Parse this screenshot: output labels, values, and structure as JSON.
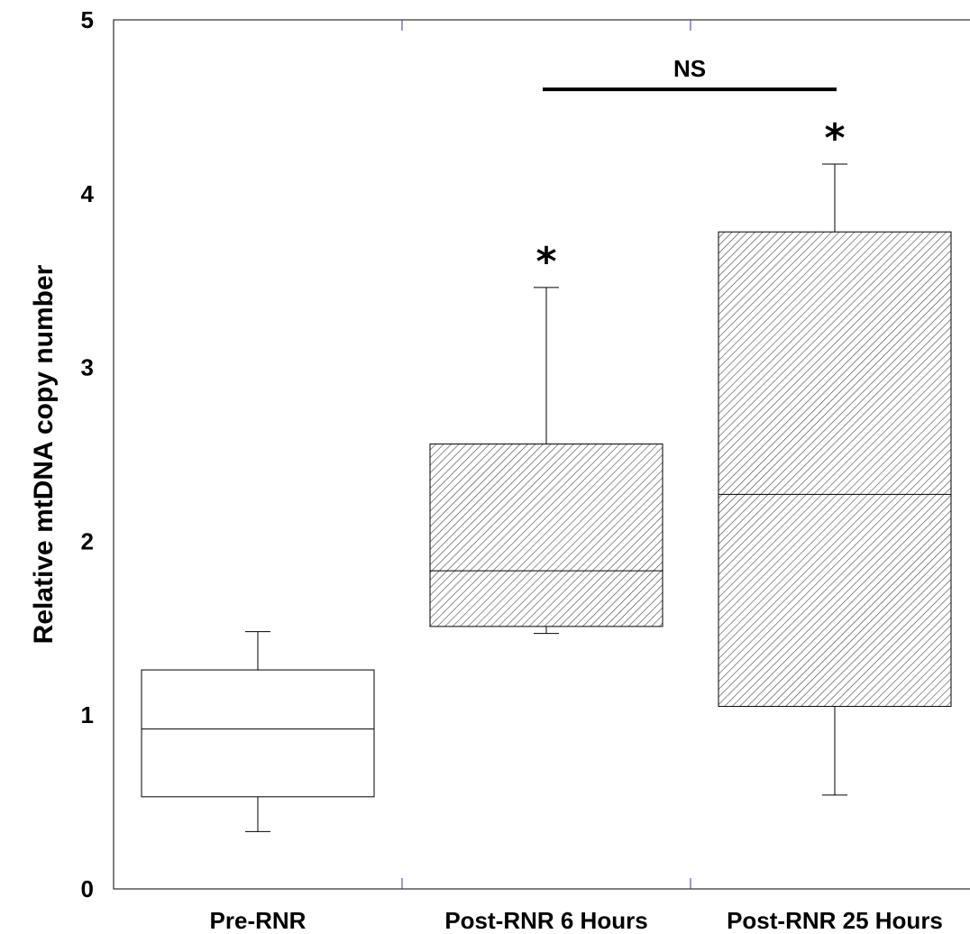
{
  "chart_data": {
    "type": "box",
    "ylabel": "Relative mtDNA copy number",
    "ylim": [
      0,
      5
    ],
    "yticks": [
      "0",
      "1",
      "2",
      "3",
      "4",
      "5"
    ],
    "categories": [
      "Pre-RNR",
      "Post-RNR 6 Hours",
      "Post-RNR 25 Hours"
    ],
    "boxes": [
      {
        "category": "Pre-RNR",
        "whisker_low": 0.33,
        "q1": 0.53,
        "median": 0.92,
        "q3": 1.26,
        "whisker_high": 1.48,
        "fill": "none",
        "marker": ""
      },
      {
        "category": "Post-RNR 6 Hours",
        "whisker_low": 1.47,
        "q1": 1.51,
        "median": 1.83,
        "q3": 2.56,
        "whisker_high": 3.46,
        "fill": "hatched",
        "marker": "*"
      },
      {
        "category": "Post-RNR 25 Hours",
        "whisker_low": 0.54,
        "q1": 1.05,
        "median": 2.27,
        "q3": 3.78,
        "whisker_high": 4.17,
        "fill": "hatched",
        "marker": "*"
      }
    ],
    "comparison": {
      "from": "Post-RNR 6 Hours",
      "to": "Post-RNR 25 Hours",
      "label": "NS",
      "y": 4.6
    },
    "colors": {
      "box_stroke": "#000000",
      "hatch": "#444444",
      "axis": "#000000",
      "tick": "#3333aa"
    }
  }
}
